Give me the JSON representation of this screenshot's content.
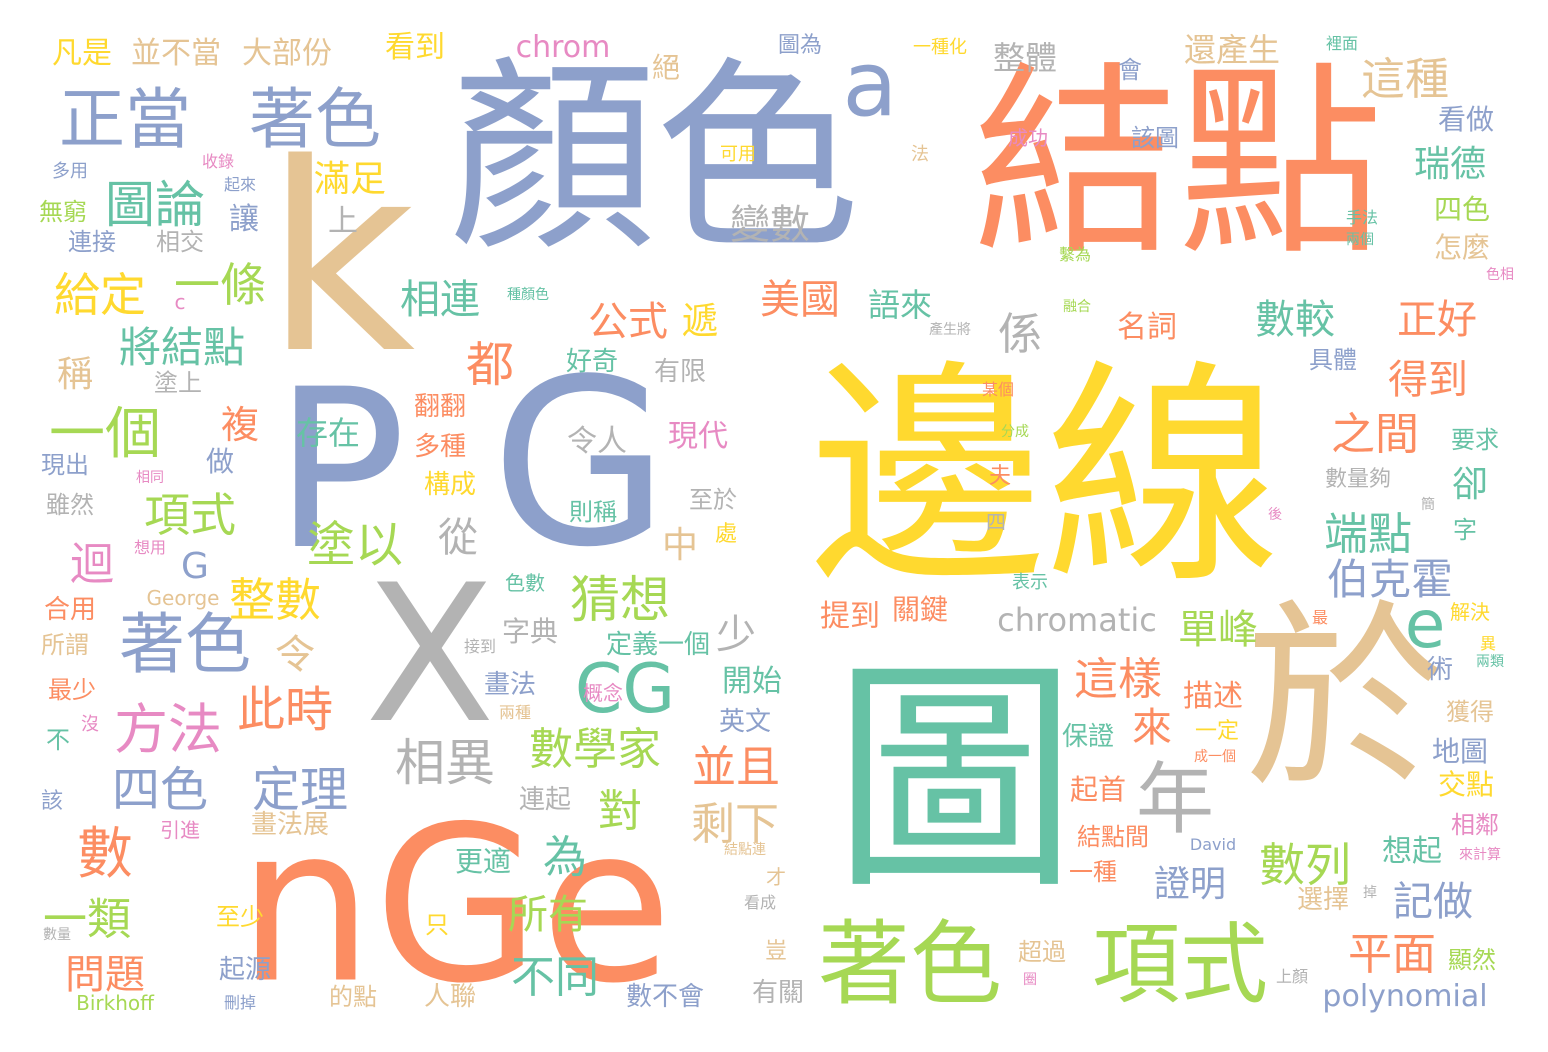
{
  "palette": {
    "teal": "#66c2a5",
    "orange": "#fc8d62",
    "blue": "#8da0cb",
    "pink": "#e78ac3",
    "green": "#a6d854",
    "yellow": "#ffd92f",
    "tan": "#e5c494",
    "gray": "#b3b3b3"
  },
  "words": [
    {
      "text": "邊線",
      "color": "yellow"
    },
    {
      "text": "結點",
      "color": "orange"
    },
    {
      "text": "顏色",
      "color": "blue"
    },
    {
      "text": "圖",
      "color": "teal"
    },
    {
      "text": "k",
      "color": "tan"
    },
    {
      "text": "P",
      "color": "blue"
    },
    {
      "text": "G",
      "color": "blue"
    },
    {
      "text": "X",
      "color": "gray"
    },
    {
      "text": "nGe",
      "color": "orange"
    },
    {
      "text": "於",
      "color": "tan"
    },
    {
      "text": "著色",
      "color": "green"
    },
    {
      "text": "項式",
      "color": "green"
    },
    {
      "text": "a",
      "color": "blue"
    },
    {
      "text": "正當",
      "color": "blue"
    },
    {
      "text": "著色",
      "color": "blue"
    },
    {
      "text": "著色",
      "color": "blue"
    },
    {
      "text": "圖論",
      "color": "teal"
    },
    {
      "text": "年",
      "color": "gray"
    },
    {
      "text": "這種",
      "color": "tan"
    },
    {
      "text": "整體",
      "color": "gray"
    },
    {
      "text": "還產生",
      "color": "tan"
    },
    {
      "text": "chrom",
      "color": "pink"
    },
    {
      "text": "看到",
      "color": "yellow"
    },
    {
      "text": "凡是",
      "color": "yellow"
    },
    {
      "text": "並不當",
      "color": "tan"
    },
    {
      "text": "大部份",
      "color": "tan"
    },
    {
      "text": "絕",
      "color": "tan"
    },
    {
      "text": "圖為",
      "color": "blue"
    },
    {
      "text": "一種化",
      "color": "yellow"
    },
    {
      "text": "會",
      "color": "blue"
    },
    {
      "text": "裡面",
      "color": "teal"
    },
    {
      "text": "滿足",
      "color": "yellow"
    },
    {
      "text": "變數",
      "color": "gray"
    },
    {
      "text": "瑞德",
      "color": "teal"
    },
    {
      "text": "看做",
      "color": "blue"
    },
    {
      "text": "四色",
      "color": "green"
    },
    {
      "text": "怎麼",
      "color": "tan"
    },
    {
      "text": "給定",
      "color": "yellow"
    },
    {
      "text": "一條",
      "color": "green"
    },
    {
      "text": "相連",
      "color": "teal"
    },
    {
      "text": "美國",
      "color": "orange"
    },
    {
      "text": "語來",
      "color": "teal"
    },
    {
      "text": "公式",
      "color": "orange"
    },
    {
      "text": "遞",
      "color": "yellow"
    },
    {
      "text": "係",
      "color": "gray"
    },
    {
      "text": "數較",
      "color": "teal"
    },
    {
      "text": "正好",
      "color": "orange"
    },
    {
      "text": "得到",
      "color": "orange"
    },
    {
      "text": "將結點",
      "color": "teal"
    },
    {
      "text": "都",
      "color": "orange"
    },
    {
      "text": "名詞",
      "color": "orange"
    },
    {
      "text": "一個",
      "color": "green"
    },
    {
      "text": "存在",
      "color": "teal"
    },
    {
      "text": "複",
      "color": "orange"
    },
    {
      "text": "之間",
      "color": "orange"
    },
    {
      "text": "卻",
      "color": "teal"
    },
    {
      "text": "項式",
      "color": "green"
    },
    {
      "text": "塗以",
      "color": "green"
    },
    {
      "text": "從",
      "color": "gray"
    },
    {
      "text": "端點",
      "color": "teal"
    },
    {
      "text": "猜想",
      "color": "green"
    },
    {
      "text": "伯克霍",
      "color": "blue"
    },
    {
      "text": "迴",
      "color": "pink"
    },
    {
      "text": "整數",
      "color": "yellow"
    },
    {
      "text": "e",
      "color": "teal"
    },
    {
      "text": "CG",
      "color": "teal"
    },
    {
      "text": "方法",
      "color": "pink"
    },
    {
      "text": "此時",
      "color": "orange"
    },
    {
      "text": "令",
      "color": "tan"
    },
    {
      "text": "少",
      "color": "gray"
    },
    {
      "text": "chromatic",
      "color": "gray"
    },
    {
      "text": "單峰",
      "color": "green"
    },
    {
      "text": "這樣",
      "color": "orange"
    },
    {
      "text": "相異",
      "color": "gray"
    },
    {
      "text": "數學家",
      "color": "green"
    },
    {
      "text": "四色",
      "color": "blue"
    },
    {
      "text": "定理",
      "color": "blue"
    },
    {
      "text": "並且",
      "color": "orange"
    },
    {
      "text": "來",
      "color": "orange"
    },
    {
      "text": "數",
      "color": "orange"
    },
    {
      "text": "對",
      "color": "green"
    },
    {
      "text": "剩下",
      "color": "tan"
    },
    {
      "text": "為",
      "color": "teal"
    },
    {
      "text": "數列",
      "color": "green"
    },
    {
      "text": "證明",
      "color": "blue"
    },
    {
      "text": "記做",
      "color": "blue"
    },
    {
      "text": "平面",
      "color": "orange"
    },
    {
      "text": "一類",
      "color": "green"
    },
    {
      "text": "問題",
      "color": "orange"
    },
    {
      "text": "所有",
      "color": "green"
    },
    {
      "text": "不同",
      "color": "teal"
    },
    {
      "text": "polynomial",
      "color": "blue"
    },
    {
      "text": "G",
      "color": "blue"
    },
    {
      "text": "中",
      "color": "tan"
    },
    {
      "text": "稱",
      "color": "tan"
    },
    {
      "text": "上",
      "color": "gray"
    },
    {
      "text": "讓",
      "color": "blue"
    },
    {
      "text": "無窮",
      "color": "green"
    },
    {
      "text": "連接",
      "color": "blue"
    },
    {
      "text": "相交",
      "color": "gray"
    },
    {
      "text": "多用",
      "color": "blue"
    },
    {
      "text": "收錄",
      "color": "pink"
    },
    {
      "text": "起來",
      "color": "blue"
    },
    {
      "text": "可用",
      "color": "yellow"
    },
    {
      "text": "法",
      "color": "tan"
    },
    {
      "text": "成功",
      "color": "pink"
    },
    {
      "text": "該圖",
      "color": "blue"
    },
    {
      "text": "手法",
      "color": "teal"
    },
    {
      "text": "兩個",
      "color": "teal"
    },
    {
      "text": "色相",
      "color": "pink"
    },
    {
      "text": "繫為",
      "color": "green"
    },
    {
      "text": "種顏色",
      "color": "teal"
    },
    {
      "text": "融合",
      "color": "green"
    },
    {
      "text": "產生將",
      "color": "gray"
    },
    {
      "text": "具體",
      "color": "blue"
    },
    {
      "text": "好奇",
      "color": "teal"
    },
    {
      "text": "有限",
      "color": "gray"
    },
    {
      "text": "塗上",
      "color": "gray"
    },
    {
      "text": "翻翻",
      "color": "orange"
    },
    {
      "text": "多種",
      "color": "orange"
    },
    {
      "text": "構成",
      "color": "yellow"
    },
    {
      "text": "令人",
      "color": "gray"
    },
    {
      "text": "現代",
      "color": "pink"
    },
    {
      "text": "某個",
      "color": "orange"
    },
    {
      "text": "要求",
      "color": "teal"
    },
    {
      "text": "現出",
      "color": "blue"
    },
    {
      "text": "雖然",
      "color": "gray"
    },
    {
      "text": "做",
      "color": "blue"
    },
    {
      "text": "相同",
      "color": "pink"
    },
    {
      "text": "則稱",
      "color": "teal"
    },
    {
      "text": "至於",
      "color": "gray"
    },
    {
      "text": "處",
      "color": "yellow"
    },
    {
      "text": "夫",
      "color": "orange"
    },
    {
      "text": "數量夠",
      "color": "gray"
    },
    {
      "text": "分成",
      "color": "green"
    },
    {
      "text": "簡",
      "color": "gray"
    },
    {
      "text": "四",
      "color": "gray"
    },
    {
      "text": "字",
      "color": "teal"
    },
    {
      "text": "後",
      "color": "pink"
    },
    {
      "text": "想用",
      "color": "pink"
    },
    {
      "text": "色數",
      "color": "teal"
    },
    {
      "text": "表示",
      "color": "teal"
    },
    {
      "text": "George",
      "color": "tan"
    },
    {
      "text": "合用",
      "color": "orange"
    },
    {
      "text": "所謂",
      "color": "tan"
    },
    {
      "text": "字典",
      "color": "gray"
    },
    {
      "text": "提到",
      "color": "orange"
    },
    {
      "text": "關鍵",
      "color": "orange"
    },
    {
      "text": "解決",
      "color": "yellow"
    },
    {
      "text": "異",
      "color": "yellow"
    },
    {
      "text": "兩類",
      "color": "teal"
    },
    {
      "text": "最",
      "color": "orange"
    },
    {
      "text": "最少",
      "color": "orange"
    },
    {
      "text": "定義一個",
      "color": "teal"
    },
    {
      "text": "接到",
      "color": "gray"
    },
    {
      "text": "畫法",
      "color": "blue"
    },
    {
      "text": "概念",
      "color": "pink"
    },
    {
      "text": "兩種",
      "color": "tan"
    },
    {
      "text": "開始",
      "color": "teal"
    },
    {
      "text": "描述",
      "color": "orange"
    },
    {
      "text": "術",
      "color": "blue"
    },
    {
      "text": "獲得",
      "color": "tan"
    },
    {
      "text": "不",
      "color": "teal"
    },
    {
      "text": "沒",
      "color": "pink"
    },
    {
      "text": "英文",
      "color": "blue"
    },
    {
      "text": "保證",
      "color": "teal"
    },
    {
      "text": "一定",
      "color": "yellow"
    },
    {
      "text": "成一個",
      "color": "orange"
    },
    {
      "text": "地圖",
      "color": "blue"
    },
    {
      "text": "交點",
      "color": "yellow"
    },
    {
      "text": "該",
      "color": "blue"
    },
    {
      "text": "連起",
      "color": "gray"
    },
    {
      "text": "起首",
      "color": "orange"
    },
    {
      "text": "畫法展",
      "color": "tan"
    },
    {
      "text": "引進",
      "color": "pink"
    },
    {
      "text": "結點間",
      "color": "orange"
    },
    {
      "text": "相鄰",
      "color": "pink"
    },
    {
      "text": "David",
      "color": "blue"
    },
    {
      "text": "想起",
      "color": "teal"
    },
    {
      "text": "來計算",
      "color": "pink"
    },
    {
      "text": "結點連",
      "color": "tan"
    },
    {
      "text": "更適",
      "color": "teal"
    },
    {
      "text": "一種",
      "color": "orange"
    },
    {
      "text": "才",
      "color": "tan"
    },
    {
      "text": "至少",
      "color": "yellow"
    },
    {
      "text": "看成",
      "color": "gray"
    },
    {
      "text": "選擇",
      "color": "tan"
    },
    {
      "text": "掉",
      "color": "gray"
    },
    {
      "text": "數量",
      "color": "gray"
    },
    {
      "text": "只",
      "color": "yellow"
    },
    {
      "text": "起源",
      "color": "blue"
    },
    {
      "text": "豈",
      "color": "tan"
    },
    {
      "text": "超過",
      "color": "tan"
    },
    {
      "text": "圈",
      "color": "pink"
    },
    {
      "text": "顯然",
      "color": "green"
    },
    {
      "text": "上顏",
      "color": "gray"
    },
    {
      "text": "Birkhoff",
      "color": "green"
    },
    {
      "text": "刪掉",
      "color": "blue"
    },
    {
      "text": "的點",
      "color": "tan"
    },
    {
      "text": "人聯",
      "color": "tan"
    },
    {
      "text": "數不會",
      "color": "blue"
    },
    {
      "text": "有關",
      "color": "gray"
    },
    {
      "text": "c",
      "color": "pink"
    },
    {
      "text": "G",
      "color": "blue"
    }
  ]
}
